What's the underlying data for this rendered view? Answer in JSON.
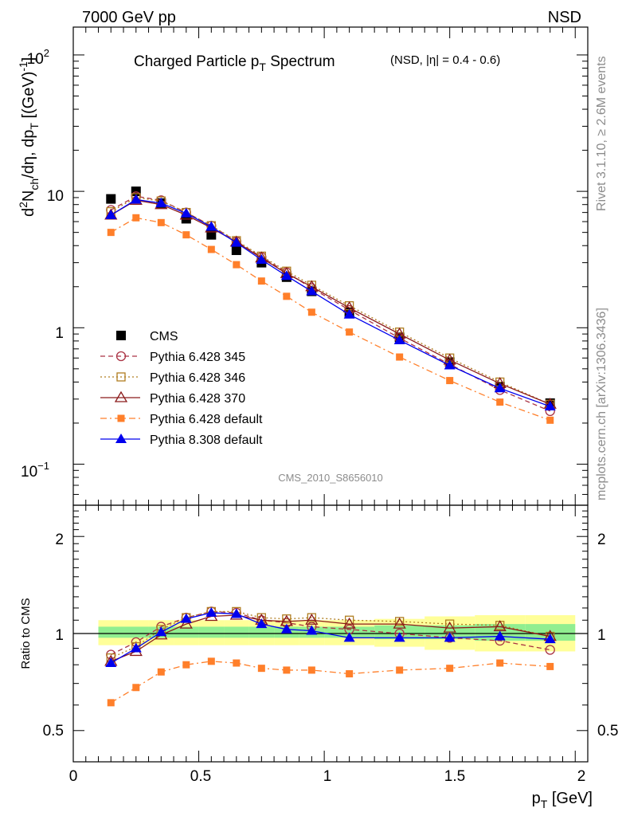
{
  "header": {
    "energy": "7000 GeV pp",
    "process": "NSD"
  },
  "side_labels": {
    "rivet": "Rivet 3.1.10, ≥ 2.6M events",
    "mcplots": "mcplots.cern.ch [arXiv:1306.3436]"
  },
  "chart_data": [
    {
      "type": "scatter",
      "panel": "main",
      "title": "Charged Particle pT Spectrum",
      "title_parts": {
        "main": "Charged Particle p",
        "sub": "T",
        "tail": " Spectrum",
        "cut": "(NSD, |η| = 0.4 - 0.6)"
      },
      "watermark": "CMS_2010_S8656010",
      "ylabel_parts": [
        "d",
        "2",
        "N",
        "ch",
        "/dη, dp",
        "T",
        " [(GeV)",
        "-1",
        "]"
      ],
      "yscale": "log",
      "ylim": [
        0.05,
        160
      ],
      "xlim": [
        0,
        2.05
      ],
      "ytick_labels": {
        "1e-1": "10",
        "1e-1_exp": "−1",
        "1": "1",
        "10": "10",
        "100": "10",
        "100_exp": "2"
      },
      "x": [
        0.15,
        0.25,
        0.35,
        0.45,
        0.55,
        0.65,
        0.75,
        0.85,
        0.95,
        1.1,
        1.3,
        1.5,
        1.7,
        1.9
      ],
      "series": [
        {
          "name": "CMS",
          "color": "#000000",
          "marker": "square",
          "line": "none",
          "values": [
            8.8,
            10.0,
            8.2,
            6.3,
            4.8,
            3.7,
            3.0,
            2.35,
            1.85,
            1.3,
            0.85,
            0.56,
            0.37,
            0.28
          ]
        },
        {
          "name": "Pythia 6.428 345",
          "color": "#aa3344",
          "marker": "circle-open",
          "line": "dashed",
          "values": [
            7.3,
            9.2,
            8.6,
            7.0,
            5.6,
            4.3,
            3.3,
            2.55,
            1.95,
            1.35,
            0.84,
            0.54,
            0.35,
            0.245
          ]
        },
        {
          "name": "Pythia 6.428 346",
          "color": "#b07d20",
          "marker": "square-open",
          "line": "dotted",
          "values": [
            7.1,
            9.0,
            8.5,
            7.0,
            5.6,
            4.35,
            3.35,
            2.6,
            2.05,
            1.45,
            0.93,
            0.6,
            0.4,
            0.275
          ]
        },
        {
          "name": "Pythia 6.428 370",
          "color": "#8b1a1a",
          "marker": "triangle-open",
          "line": "solid",
          "values": [
            6.7,
            8.6,
            8.0,
            6.7,
            5.4,
            4.25,
            3.25,
            2.5,
            2.0,
            1.4,
            0.9,
            0.58,
            0.39,
            0.275
          ]
        },
        {
          "name": "Pythia 6.428 default",
          "color": "#ff7f2a",
          "marker": "square-small",
          "line": "dashdot",
          "values": [
            5.0,
            6.4,
            5.9,
            4.8,
            3.75,
            2.9,
            2.2,
            1.7,
            1.3,
            0.93,
            0.61,
            0.41,
            0.285,
            0.21
          ]
        },
        {
          "name": "Pythia 8.308 default",
          "color": "#0000ee",
          "marker": "triangle",
          "line": "solid",
          "values": [
            6.7,
            8.7,
            8.2,
            6.9,
            5.5,
            4.2,
            3.15,
            2.4,
            1.85,
            1.25,
            0.81,
            0.53,
            0.36,
            0.265
          ]
        }
      ]
    },
    {
      "type": "scatter",
      "panel": "ratio",
      "ylabel": "Ratio to CMS",
      "yscale": "log",
      "ylim": [
        0.4,
        2.5
      ],
      "xlim": [
        0,
        2.05
      ],
      "xlabel_parts": [
        "p",
        "T",
        " [GeV]"
      ],
      "xtick_labels": [
        "0",
        "0.5",
        "1",
        "1.5",
        "2"
      ],
      "ytick_labels": [
        "0.5",
        "1",
        "2"
      ],
      "bands": {
        "edges": [
          0.1,
          0.2,
          0.3,
          0.4,
          0.5,
          0.6,
          0.7,
          0.8,
          0.9,
          1.0,
          1.2,
          1.4,
          1.6,
          1.8,
          2.0
        ],
        "stat": [
          [
            0.97,
            1.05
          ],
          [
            0.97,
            1.05
          ],
          [
            0.97,
            1.05
          ],
          [
            0.97,
            1.05
          ],
          [
            0.97,
            1.05
          ],
          [
            0.97,
            1.05
          ],
          [
            0.97,
            1.05
          ],
          [
            0.97,
            1.05
          ],
          [
            0.97,
            1.05
          ],
          [
            0.97,
            1.05
          ],
          [
            0.96,
            1.06
          ],
          [
            0.96,
            1.06
          ],
          [
            0.95,
            1.07
          ],
          [
            0.95,
            1.07
          ]
        ],
        "syst": [
          [
            0.92,
            1.1
          ],
          [
            0.92,
            1.1
          ],
          [
            0.92,
            1.1
          ],
          [
            0.92,
            1.1
          ],
          [
            0.92,
            1.1
          ],
          [
            0.92,
            1.1
          ],
          [
            0.92,
            1.1
          ],
          [
            0.92,
            1.1
          ],
          [
            0.92,
            1.1
          ],
          [
            0.92,
            1.1
          ],
          [
            0.91,
            1.11
          ],
          [
            0.89,
            1.13
          ],
          [
            0.88,
            1.14
          ],
          [
            0.88,
            1.14
          ]
        ],
        "stat_color": "#90ee90",
        "syst_color": "#ffff99"
      },
      "x": [
        0.15,
        0.25,
        0.35,
        0.45,
        0.55,
        0.65,
        0.75,
        0.85,
        0.95,
        1.1,
        1.3,
        1.5,
        1.7,
        1.9
      ],
      "series": [
        {
          "name": "Pythia 6.428 345",
          "values": [
            0.86,
            0.94,
            1.05,
            1.12,
            1.17,
            1.16,
            1.1,
            1.08,
            1.05,
            1.03,
            1.0,
            0.97,
            0.95,
            0.89
          ]
        },
        {
          "name": "Pythia 6.428 346",
          "values": [
            0.84,
            0.91,
            1.03,
            1.12,
            1.17,
            1.17,
            1.12,
            1.11,
            1.12,
            1.1,
            1.09,
            1.07,
            1.06,
            0.98
          ]
        },
        {
          "name": "Pythia 6.428 370",
          "values": [
            0.82,
            0.88,
            0.99,
            1.07,
            1.13,
            1.14,
            1.1,
            1.09,
            1.1,
            1.07,
            1.07,
            1.04,
            1.05,
            0.98
          ]
        },
        {
          "name": "Pythia 6.428 default",
          "values": [
            0.61,
            0.68,
            0.76,
            0.8,
            0.82,
            0.81,
            0.78,
            0.77,
            0.77,
            0.75,
            0.77,
            0.78,
            0.81,
            0.79
          ]
        },
        {
          "name": "Pythia 8.308 default",
          "values": [
            0.81,
            0.9,
            1.01,
            1.11,
            1.16,
            1.15,
            1.07,
            1.03,
            1.02,
            0.97,
            0.97,
            0.97,
            0.98,
            0.96
          ]
        }
      ]
    }
  ]
}
